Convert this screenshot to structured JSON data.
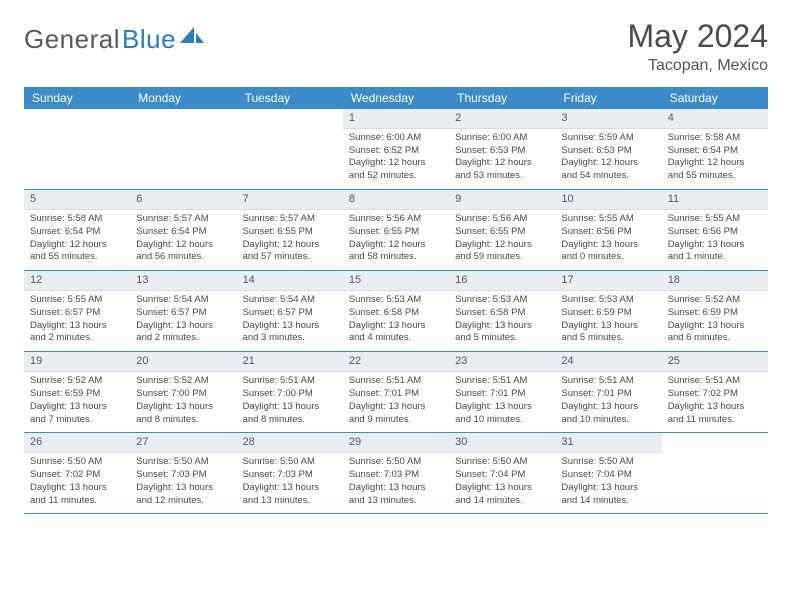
{
  "logo": {
    "text1": "General",
    "text2": "Blue"
  },
  "title": "May 2024",
  "location": "Tacopan, Mexico",
  "colors": {
    "header_bg": "#3b8bc8",
    "header_fg": "#ffffff",
    "daynum_bg": "#e8eef2",
    "row_border": "#3b8bc8",
    "text": "#4a4a4a"
  },
  "weekdays": [
    "Sunday",
    "Monday",
    "Tuesday",
    "Wednesday",
    "Thursday",
    "Friday",
    "Saturday"
  ],
  "weeks": [
    [
      {
        "empty": true
      },
      {
        "empty": true
      },
      {
        "empty": true
      },
      {
        "day": "1",
        "sunrise": "6:00 AM",
        "sunset": "6:52 PM",
        "daylight": "12 hours and 52 minutes."
      },
      {
        "day": "2",
        "sunrise": "6:00 AM",
        "sunset": "6:53 PM",
        "daylight": "12 hours and 53 minutes."
      },
      {
        "day": "3",
        "sunrise": "5:59 AM",
        "sunset": "6:53 PM",
        "daylight": "12 hours and 54 minutes."
      },
      {
        "day": "4",
        "sunrise": "5:58 AM",
        "sunset": "6:54 PM",
        "daylight": "12 hours and 55 minutes."
      }
    ],
    [
      {
        "day": "5",
        "sunrise": "5:58 AM",
        "sunset": "6:54 PM",
        "daylight": "12 hours and 55 minutes."
      },
      {
        "day": "6",
        "sunrise": "5:57 AM",
        "sunset": "6:54 PM",
        "daylight": "12 hours and 56 minutes."
      },
      {
        "day": "7",
        "sunrise": "5:57 AM",
        "sunset": "6:55 PM",
        "daylight": "12 hours and 57 minutes."
      },
      {
        "day": "8",
        "sunrise": "5:56 AM",
        "sunset": "6:55 PM",
        "daylight": "12 hours and 58 minutes."
      },
      {
        "day": "9",
        "sunrise": "5:56 AM",
        "sunset": "6:55 PM",
        "daylight": "12 hours and 59 minutes."
      },
      {
        "day": "10",
        "sunrise": "5:55 AM",
        "sunset": "6:56 PM",
        "daylight": "13 hours and 0 minutes."
      },
      {
        "day": "11",
        "sunrise": "5:55 AM",
        "sunset": "6:56 PM",
        "daylight": "13 hours and 1 minute."
      }
    ],
    [
      {
        "day": "12",
        "sunrise": "5:55 AM",
        "sunset": "6:57 PM",
        "daylight": "13 hours and 2 minutes."
      },
      {
        "day": "13",
        "sunrise": "5:54 AM",
        "sunset": "6:57 PM",
        "daylight": "13 hours and 2 minutes."
      },
      {
        "day": "14",
        "sunrise": "5:54 AM",
        "sunset": "6:57 PM",
        "daylight": "13 hours and 3 minutes."
      },
      {
        "day": "15",
        "sunrise": "5:53 AM",
        "sunset": "6:58 PM",
        "daylight": "13 hours and 4 minutes."
      },
      {
        "day": "16",
        "sunrise": "5:53 AM",
        "sunset": "6:58 PM",
        "daylight": "13 hours and 5 minutes."
      },
      {
        "day": "17",
        "sunrise": "5:53 AM",
        "sunset": "6:59 PM",
        "daylight": "13 hours and 5 minutes."
      },
      {
        "day": "18",
        "sunrise": "5:52 AM",
        "sunset": "6:59 PM",
        "daylight": "13 hours and 6 minutes."
      }
    ],
    [
      {
        "day": "19",
        "sunrise": "5:52 AM",
        "sunset": "6:59 PM",
        "daylight": "13 hours and 7 minutes."
      },
      {
        "day": "20",
        "sunrise": "5:52 AM",
        "sunset": "7:00 PM",
        "daylight": "13 hours and 8 minutes."
      },
      {
        "day": "21",
        "sunrise": "5:51 AM",
        "sunset": "7:00 PM",
        "daylight": "13 hours and 8 minutes."
      },
      {
        "day": "22",
        "sunrise": "5:51 AM",
        "sunset": "7:01 PM",
        "daylight": "13 hours and 9 minutes."
      },
      {
        "day": "23",
        "sunrise": "5:51 AM",
        "sunset": "7:01 PM",
        "daylight": "13 hours and 10 minutes."
      },
      {
        "day": "24",
        "sunrise": "5:51 AM",
        "sunset": "7:01 PM",
        "daylight": "13 hours and 10 minutes."
      },
      {
        "day": "25",
        "sunrise": "5:51 AM",
        "sunset": "7:02 PM",
        "daylight": "13 hours and 11 minutes."
      }
    ],
    [
      {
        "day": "26",
        "sunrise": "5:50 AM",
        "sunset": "7:02 PM",
        "daylight": "13 hours and 11 minutes."
      },
      {
        "day": "27",
        "sunrise": "5:50 AM",
        "sunset": "7:03 PM",
        "daylight": "13 hours and 12 minutes."
      },
      {
        "day": "28",
        "sunrise": "5:50 AM",
        "sunset": "7:03 PM",
        "daylight": "13 hours and 13 minutes."
      },
      {
        "day": "29",
        "sunrise": "5:50 AM",
        "sunset": "7:03 PM",
        "daylight": "13 hours and 13 minutes."
      },
      {
        "day": "30",
        "sunrise": "5:50 AM",
        "sunset": "7:04 PM",
        "daylight": "13 hours and 14 minutes."
      },
      {
        "day": "31",
        "sunrise": "5:50 AM",
        "sunset": "7:04 PM",
        "daylight": "13 hours and 14 minutes."
      },
      {
        "empty": true
      }
    ]
  ],
  "labels": {
    "sunrise": "Sunrise:",
    "sunset": "Sunset:",
    "daylight": "Daylight:"
  }
}
